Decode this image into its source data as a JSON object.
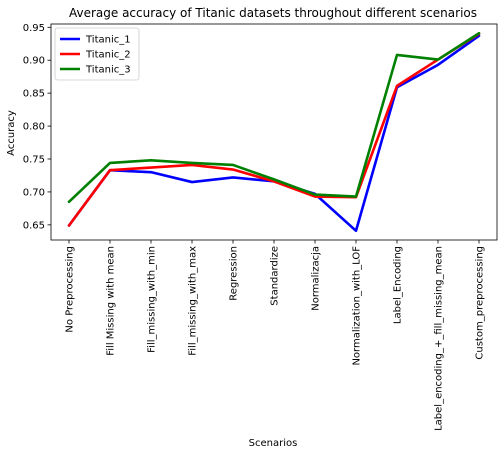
{
  "chart_data": {
    "type": "line",
    "title": "Average accuracy of Titanic datasets throughout different scenarios",
    "xlabel": "Scenarios",
    "ylabel": "Accuracy",
    "ylim": [
      0.627,
      0.955
    ],
    "yticks": [
      "0.65",
      "0.70",
      "0.75",
      "0.80",
      "0.85",
      "0.90",
      "0.95"
    ],
    "ytick_values": [
      0.65,
      0.7,
      0.75,
      0.8,
      0.85,
      0.9,
      0.95
    ],
    "grid": false,
    "legend_position": "top-left",
    "categories": [
      "No Preprocessing",
      "Fill Missing with mean",
      "Fill_missing_with_min",
      "Fill_missing_with_max",
      "Regression",
      "Standardize",
      "Normalizacja",
      "Normalization_with_LOF",
      "Label_Encoding",
      "Label_encoding_+_fill_missing_mean",
      "Custom_preprocessing"
    ],
    "series": [
      {
        "name": "Titanic_1",
        "color": "#0000ff",
        "values": [
          0.649,
          0.733,
          0.73,
          0.715,
          0.722,
          0.716,
          0.697,
          0.641,
          0.859,
          0.893,
          0.937
        ]
      },
      {
        "name": "Titanic_2",
        "color": "#ff0000",
        "values": [
          0.649,
          0.733,
          0.737,
          0.741,
          0.734,
          0.716,
          0.693,
          0.692,
          0.861,
          0.901,
          0.94
        ]
      },
      {
        "name": "Titanic_3",
        "color": "#008000",
        "values": [
          0.685,
          0.744,
          0.748,
          0.744,
          0.741,
          0.719,
          0.696,
          0.693,
          0.908,
          0.901,
          0.941
        ]
      }
    ]
  }
}
